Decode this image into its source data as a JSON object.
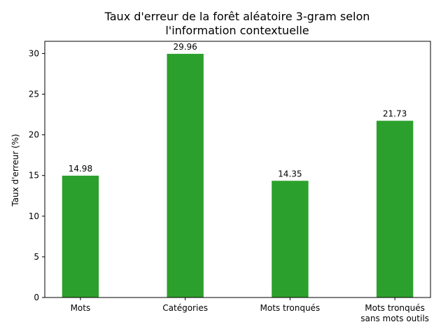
{
  "chart_data": {
    "type": "bar",
    "title": [
      "Taux d'erreur de la forêt aléatoire 3-gram selon",
      "l'information contextuelle"
    ],
    "xlabel": "",
    "ylabel": "Taux d'erreur (%)",
    "categories": [
      [
        "Mots"
      ],
      [
        "Catégories"
      ],
      [
        "Mots tronqués"
      ],
      [
        "Mots tronqués",
        "sans mots outils"
      ]
    ],
    "values": [
      14.98,
      29.96,
      14.35,
      21.73
    ],
    "data_labels": [
      "14.98",
      "29.96",
      "14.35",
      "21.73"
    ],
    "ylim": [
      0,
      31.5
    ],
    "yticks": [
      0,
      5,
      10,
      15,
      20,
      25,
      30
    ],
    "bar_color": "#2ca02c",
    "grid": false,
    "legend": "none"
  }
}
